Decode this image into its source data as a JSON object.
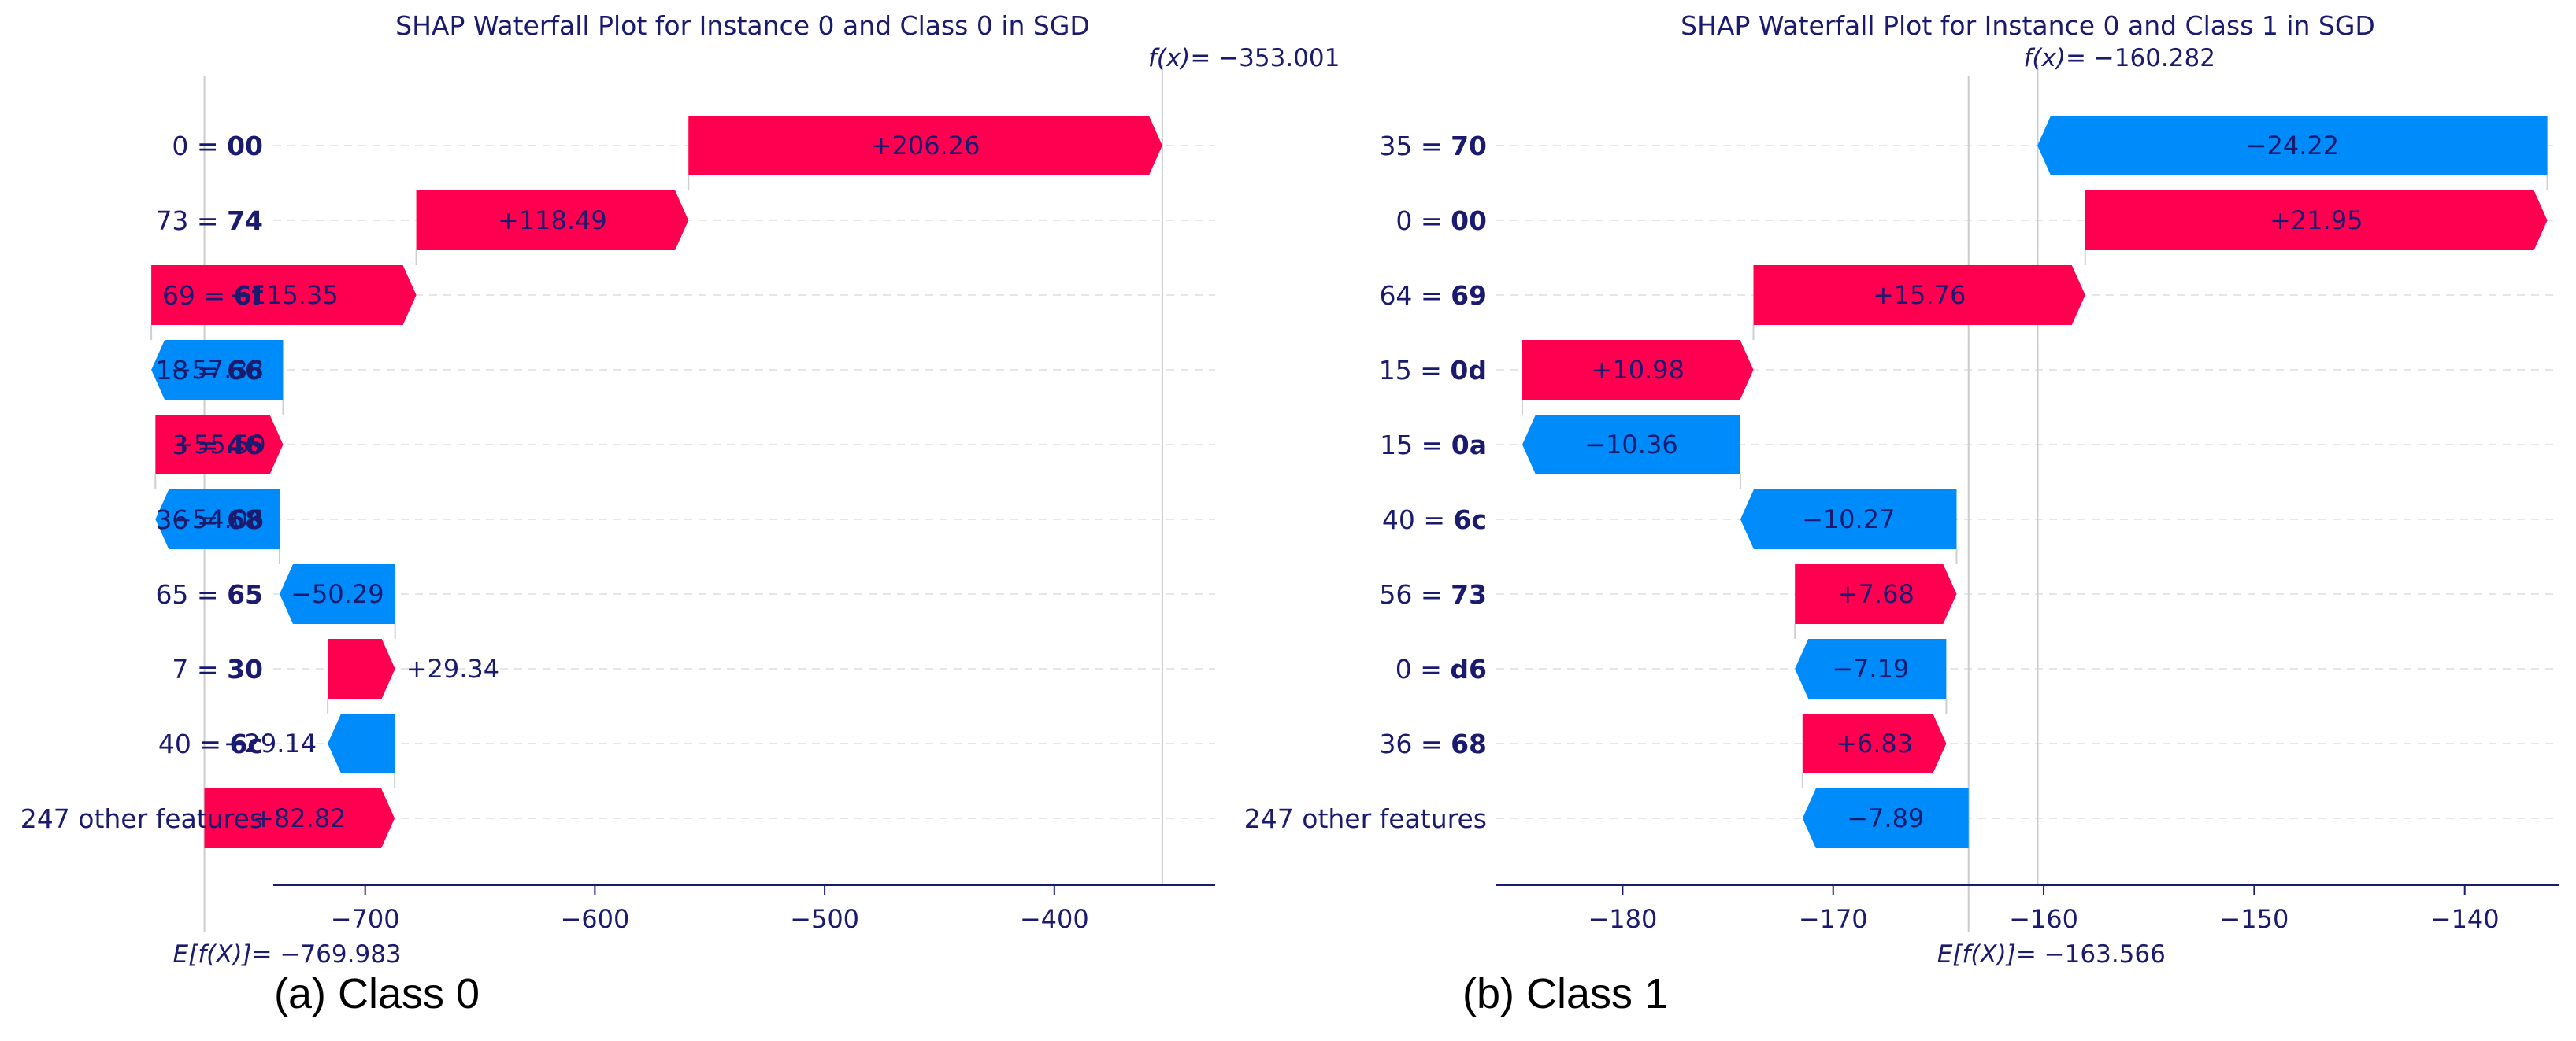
{
  "colors": {
    "positive": "#ff0051",
    "negative": "#008bfb",
    "text": "#1a1a6e",
    "axis": "#1a1a6e",
    "grid": "#e6e6e6",
    "caption": "#000000"
  },
  "chart_data": [
    {
      "type": "waterfall",
      "title": "SHAP Waterfall Plot for Instance 0 and Class 0 in SGD",
      "caption": "(a) Class 0",
      "fx_label": "f(x)",
      "fx_value_text": "= −353.001",
      "efx_label": "E[f(X)]",
      "efx_value_text": "= −769.983",
      "base_value": -769.983,
      "final_value": -353.001,
      "xlim": [
        -740,
        -330
      ],
      "xticks": [
        -700,
        -600,
        -500,
        -400
      ],
      "xtick_labels": [
        "−700",
        "−600",
        "−500",
        "−400"
      ],
      "features": [
        {
          "name": "0 = ",
          "value": "00",
          "shap": 206.26,
          "label": "+206.26"
        },
        {
          "name": "73 = ",
          "value": "74",
          "shap": 118.49,
          "label": "+118.49"
        },
        {
          "name": "69 = ",
          "value": "6f",
          "shap": 115.35,
          "label": "+115.35"
        },
        {
          "name": "18 = ",
          "value": "66",
          "shap": -57.38,
          "label": "−57.38"
        },
        {
          "name": "3 = ",
          "value": "46",
          "shap": 55.59,
          "label": "+55.59"
        },
        {
          "name": "36 = ",
          "value": "68",
          "shap": -54.06,
          "label": "−54.06"
        },
        {
          "name": "65 = ",
          "value": "65",
          "shap": -50.29,
          "label": "−50.29"
        },
        {
          "name": "7 = ",
          "value": "30",
          "shap": 29.34,
          "label": "+29.34"
        },
        {
          "name": "40 = ",
          "value": "6c",
          "shap": -29.14,
          "label": "−29.14"
        },
        {
          "name": "247 other features",
          "value": "",
          "shap": 82.82,
          "label": "+82.82"
        }
      ]
    },
    {
      "type": "waterfall",
      "title": "SHAP Waterfall Plot for Instance 0 and Class 1 in SGD",
      "caption": "(b) Class 1",
      "fx_label": "f(x)",
      "fx_value_text": "= −160.282",
      "efx_label": "E[f(X)]",
      "efx_value_text": "= −163.566",
      "base_value": -163.566,
      "final_value": -160.282,
      "xlim": [
        -186,
        -135.5
      ],
      "xticks": [
        -180,
        -170,
        -160,
        -150,
        -140
      ],
      "xtick_labels": [
        "−180",
        "−170",
        "−160",
        "−150",
        "−140"
      ],
      "features": [
        {
          "name": "35 = ",
          "value": "70",
          "shap": -24.22,
          "label": "−24.22"
        },
        {
          "name": "0 = ",
          "value": "00",
          "shap": 21.95,
          "label": "+21.95"
        },
        {
          "name": "64 = ",
          "value": "69",
          "shap": 15.76,
          "label": "+15.76"
        },
        {
          "name": "15 = ",
          "value": "0d",
          "shap": 10.98,
          "label": "+10.98"
        },
        {
          "name": "15 = ",
          "value": "0a",
          "shap": -10.36,
          "label": "−10.36"
        },
        {
          "name": "40 = ",
          "value": "6c",
          "shap": -10.27,
          "label": "−10.27"
        },
        {
          "name": "56 = ",
          "value": "73",
          "shap": 7.68,
          "label": "+7.68"
        },
        {
          "name": "0 = ",
          "value": "d6",
          "shap": -7.19,
          "label": "−7.19"
        },
        {
          "name": "36 = ",
          "value": "68",
          "shap": 6.83,
          "label": "+6.83"
        },
        {
          "name": "247 other features",
          "value": "",
          "shap": -7.89,
          "label": "−7.89"
        }
      ]
    }
  ]
}
